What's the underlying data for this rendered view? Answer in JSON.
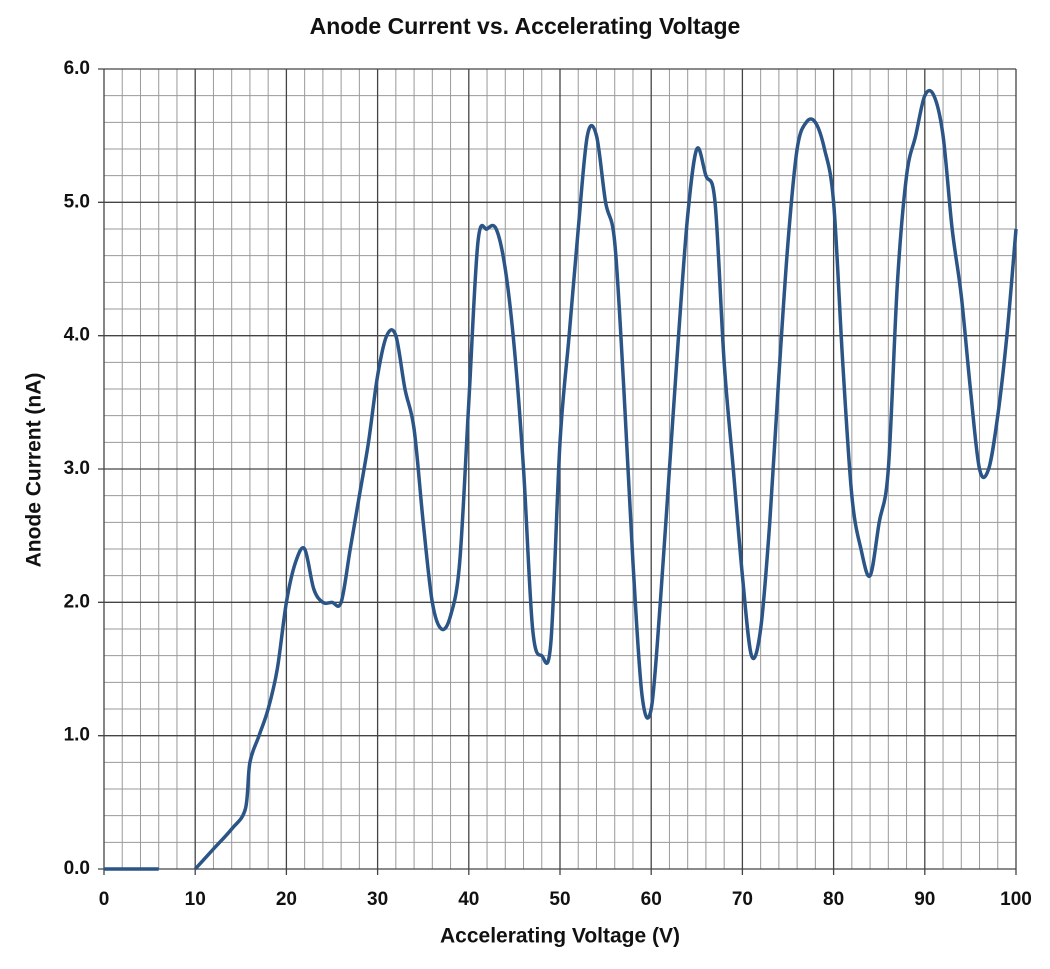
{
  "chart_data": {
    "type": "line",
    "title": "Anode Current vs. Accelerating Voltage",
    "xlabel": "Accelerating Voltage  (V)",
    "ylabel": "Anode Current (nA)",
    "x": [
      0,
      6,
      8,
      10,
      12,
      14,
      15.5,
      16,
      17,
      18,
      19,
      20,
      21,
      22,
      23,
      24,
      25,
      26,
      27,
      28,
      29,
      30,
      31,
      32,
      33,
      34,
      35,
      36,
      37,
      38,
      39,
      40,
      41,
      42,
      43,
      44,
      45,
      46,
      47,
      48,
      49,
      50,
      51,
      52,
      53,
      54,
      55,
      56,
      57,
      58,
      59,
      60,
      61,
      62,
      63,
      64,
      65,
      66,
      67,
      68,
      69,
      70,
      71,
      72,
      73,
      74,
      75,
      76,
      77,
      78,
      79,
      80,
      81,
      82,
      83,
      84,
      85,
      86,
      87,
      88,
      89,
      90,
      91,
      92,
      93,
      94,
      95,
      96,
      97,
      98,
      99,
      100
    ],
    "series": [
      {
        "color": "#2b5586",
        "values": [
          0,
          0,
          null,
          0,
          0.15,
          0.3,
          0.45,
          0.8,
          1.0,
          1.2,
          1.5,
          2.0,
          2.3,
          2.4,
          2.1,
          2.0,
          2.0,
          2.0,
          2.4,
          2.8,
          3.2,
          3.7,
          4.0,
          4.0,
          3.6,
          3.3,
          2.6,
          2.0,
          1.8,
          1.9,
          2.3,
          3.5,
          4.7,
          4.8,
          4.8,
          4.5,
          3.9,
          3.0,
          1.8,
          1.6,
          1.7,
          3.2,
          4.0,
          4.8,
          5.5,
          5.5,
          5.0,
          4.7,
          3.6,
          2.3,
          1.3,
          1.2,
          2.0,
          3.0,
          4.0,
          4.9,
          5.4,
          5.2,
          5.0,
          3.8,
          3.0,
          2.2,
          1.6,
          1.8,
          2.6,
          3.7,
          4.7,
          5.4,
          5.6,
          5.6,
          5.4,
          5.0,
          3.8,
          2.8,
          2.4,
          2.2,
          2.6,
          3.0,
          4.4,
          5.2,
          5.5,
          5.8,
          5.8,
          5.5,
          4.8,
          4.3,
          3.6,
          3.0,
          3.0,
          3.4,
          4.0,
          4.8
        ]
      }
    ],
    "xlim": [
      0,
      100
    ],
    "ylim": [
      0,
      6
    ],
    "xticks": [
      0,
      10,
      20,
      30,
      40,
      50,
      60,
      70,
      80,
      90,
      100
    ],
    "yticks": [
      {
        "value": 0,
        "label": "0.0"
      },
      {
        "value": 1,
        "label": "1.0"
      },
      {
        "value": 2,
        "label": "2.0"
      },
      {
        "value": 3,
        "label": "3.0"
      },
      {
        "value": 4,
        "label": "4.0"
      },
      {
        "value": 5,
        "label": "5.0"
      },
      {
        "value": 6,
        "label": "6.0"
      }
    ],
    "xminorticks": [
      2,
      4,
      6,
      8,
      12,
      14,
      16,
      18,
      22,
      24,
      26,
      28,
      32,
      34,
      36,
      38,
      42,
      44,
      46,
      48,
      52,
      54,
      56,
      58,
      62,
      64,
      66,
      68,
      72,
      74,
      76,
      78,
      82,
      84,
      86,
      88,
      92,
      94,
      96,
      98
    ],
    "yminorticks": [
      0.2,
      0.4,
      0.6,
      0.8,
      1.2,
      1.4,
      1.6,
      1.8,
      2.2,
      2.4,
      2.6,
      2.8,
      3.2,
      3.4,
      3.6,
      3.8,
      4.2,
      4.4,
      4.6,
      4.8,
      5.2,
      5.4,
      5.6,
      5.8
    ],
    "grid": true
  }
}
